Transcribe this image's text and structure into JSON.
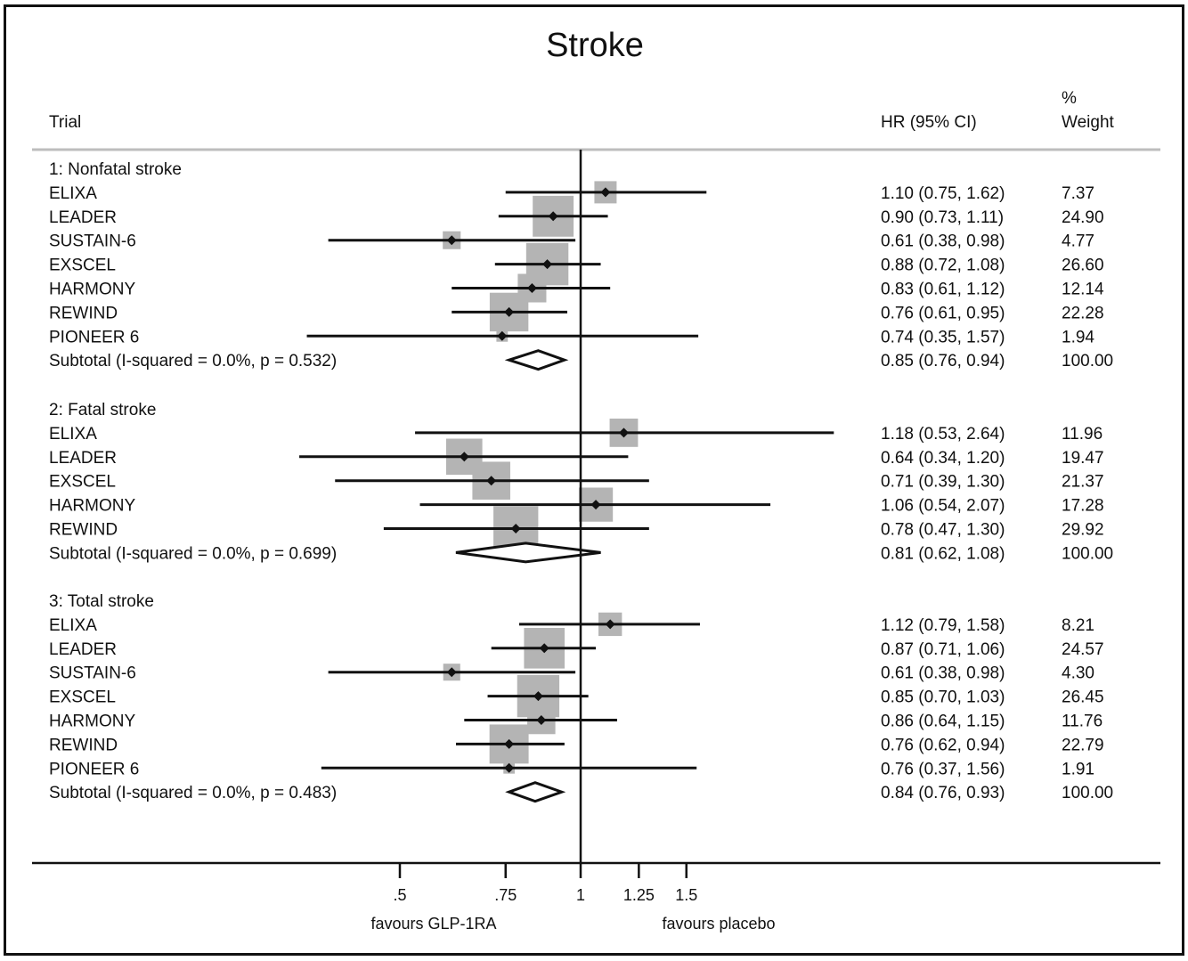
{
  "chart_data": {
    "type": "forest",
    "title": "Stroke",
    "columns": {
      "trial": "Trial",
      "hr": "HR (95% CI)",
      "weight_line1": "%",
      "weight_line2": "Weight"
    },
    "groups": [
      {
        "label": "1:  Nonfatal stroke",
        "rows": [
          {
            "trial": "ELIXA",
            "hr": 1.1,
            "lo": 0.75,
            "hi": 1.62,
            "ci_text": "1.10 (0.75, 1.62)",
            "weight": "7.37"
          },
          {
            "trial": "LEADER",
            "hr": 0.9,
            "lo": 0.73,
            "hi": 1.11,
            "ci_text": "0.90 (0.73, 1.11)",
            "weight": "24.90"
          },
          {
            "trial": "SUSTAIN-6",
            "hr": 0.61,
            "lo": 0.38,
            "hi": 0.98,
            "ci_text": "0.61 (0.38, 0.98)",
            "weight": "4.77"
          },
          {
            "trial": "EXSCEL",
            "hr": 0.88,
            "lo": 0.72,
            "hi": 1.08,
            "ci_text": "0.88 (0.72, 1.08)",
            "weight": "26.60"
          },
          {
            "trial": "HARMONY",
            "hr": 0.83,
            "lo": 0.61,
            "hi": 1.12,
            "ci_text": "0.83 (0.61, 1.12)",
            "weight": "12.14"
          },
          {
            "trial": "REWIND",
            "hr": 0.76,
            "lo": 0.61,
            "hi": 0.95,
            "ci_text": "0.76 (0.61, 0.95)",
            "weight": "22.28"
          },
          {
            "trial": "PIONEER 6",
            "hr": 0.74,
            "lo": 0.35,
            "hi": 1.57,
            "ci_text": "0.74 (0.35, 1.57)",
            "weight": "1.94"
          }
        ],
        "subtotal": {
          "label": "Subtotal  (I-squared = 0.0%, p = 0.532)",
          "hr": 0.85,
          "lo": 0.76,
          "hi": 0.94,
          "ci_text": "0.85 (0.76, 0.94)",
          "weight": "100.00"
        }
      },
      {
        "label": "2:  Fatal stroke",
        "rows": [
          {
            "trial": "ELIXA",
            "hr": 1.18,
            "lo": 0.53,
            "hi": 2.64,
            "ci_text": "1.18 (0.53, 2.64)",
            "weight": "11.96"
          },
          {
            "trial": "LEADER",
            "hr": 0.64,
            "lo": 0.34,
            "hi": 1.2,
            "ci_text": "0.64 (0.34, 1.20)",
            "weight": "19.47"
          },
          {
            "trial": "EXSCEL",
            "hr": 0.71,
            "lo": 0.39,
            "hi": 1.3,
            "ci_text": "0.71 (0.39, 1.30)",
            "weight": "21.37"
          },
          {
            "trial": "HARMONY",
            "hr": 1.06,
            "lo": 0.54,
            "hi": 2.07,
            "ci_text": "1.06 (0.54, 2.07)",
            "weight": "17.28"
          },
          {
            "trial": "REWIND",
            "hr": 0.78,
            "lo": 0.47,
            "hi": 1.3,
            "ci_text": "0.78 (0.47, 1.30)",
            "weight": "29.92"
          }
        ],
        "subtotal": {
          "label": "Subtotal  (I-squared = 0.0%, p = 0.699)",
          "hr": 0.81,
          "lo": 0.62,
          "hi": 1.08,
          "ci_text": "0.81 (0.62, 1.08)",
          "weight": "100.00"
        }
      },
      {
        "label": "3:  Total stroke",
        "rows": [
          {
            "trial": "ELIXA",
            "hr": 1.12,
            "lo": 0.79,
            "hi": 1.58,
            "ci_text": "1.12 (0.79, 1.58)",
            "weight": "8.21"
          },
          {
            "trial": "LEADER",
            "hr": 0.87,
            "lo": 0.71,
            "hi": 1.06,
            "ci_text": "0.87 (0.71, 1.06)",
            "weight": "24.57"
          },
          {
            "trial": "SUSTAIN-6",
            "hr": 0.61,
            "lo": 0.38,
            "hi": 0.98,
            "ci_text": "0.61 (0.38, 0.98)",
            "weight": "4.30"
          },
          {
            "trial": "EXSCEL",
            "hr": 0.85,
            "lo": 0.7,
            "hi": 1.03,
            "ci_text": "0.85 (0.70, 1.03)",
            "weight": "26.45"
          },
          {
            "trial": "HARMONY",
            "hr": 0.86,
            "lo": 0.64,
            "hi": 1.15,
            "ci_text": "0.86 (0.64, 1.15)",
            "weight": "11.76"
          },
          {
            "trial": "REWIND",
            "hr": 0.76,
            "lo": 0.62,
            "hi": 0.94,
            "ci_text": "0.76 (0.62, 0.94)",
            "weight": "22.79"
          },
          {
            "trial": "PIONEER 6",
            "hr": 0.76,
            "lo": 0.37,
            "hi": 1.56,
            "ci_text": "0.76 (0.37, 1.56)",
            "weight": "1.91"
          }
        ],
        "subtotal": {
          "label": "Subtotal  (I-squared = 0.0%, p = 0.483)",
          "hr": 0.84,
          "lo": 0.76,
          "hi": 0.93,
          "ci_text": "0.84 (0.76, 0.93)",
          "weight": "100.00"
        }
      }
    ],
    "x_axis": {
      "scale": "log",
      "ticks": [
        0.5,
        0.75,
        1,
        1.25,
        1.5
      ],
      "tick_labels": [
        ".5",
        ".75",
        "1",
        "1.25",
        "1.5"
      ],
      "reference_line": 1
    },
    "favours_left": "favours GLP-1RA",
    "favours_right": "favours placebo"
  },
  "colors": {
    "text": "#111111",
    "weight_box": "#b4b4b4",
    "header_rule": "#bdbdbd",
    "line": "#111111"
  }
}
